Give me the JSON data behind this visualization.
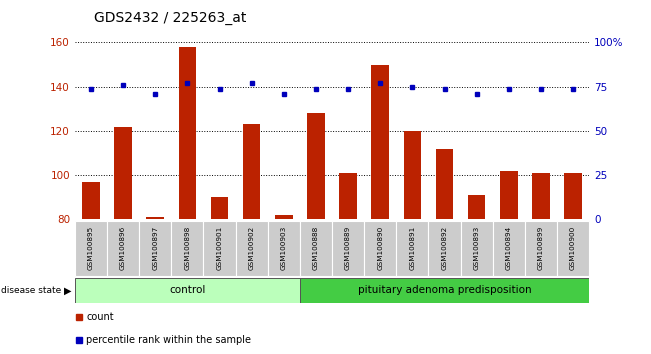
{
  "title": "GDS2432 / 225263_at",
  "samples": [
    "GSM100895",
    "GSM100896",
    "GSM100897",
    "GSM100898",
    "GSM100901",
    "GSM100902",
    "GSM100903",
    "GSM100888",
    "GSM100889",
    "GSM100890",
    "GSM100891",
    "GSM100892",
    "GSM100893",
    "GSM100894",
    "GSM100899",
    "GSM100900"
  ],
  "count_data": [
    97,
    122,
    81,
    158,
    90,
    123,
    82,
    128,
    101,
    150,
    120,
    112,
    91,
    102,
    101,
    101
  ],
  "pct_data": [
    74,
    76,
    71,
    77,
    74,
    77,
    71,
    74,
    74,
    77,
    75,
    74,
    71,
    74,
    74,
    74
  ],
  "ylim_left": [
    80,
    160
  ],
  "ylim_right": [
    0,
    100
  ],
  "yticks_left": [
    80,
    100,
    120,
    140,
    160
  ],
  "yticks_right": [
    0,
    25,
    50,
    75,
    100
  ],
  "ytick_labels_right": [
    "0",
    "25",
    "50",
    "75",
    "100%"
  ],
  "control_count": 7,
  "disease_label": "control",
  "disease2_label": "pituitary adenoma predisposition",
  "bar_color": "#bb2200",
  "dot_color": "#0000bb",
  "control_bg": "#ccffcc",
  "disease_bg": "#44cc44",
  "tick_bg": "#cccccc",
  "legend_count_label": "count",
  "legend_pct_label": "percentile rank within the sample",
  "figsize": [
    6.51,
    3.54
  ],
  "dpi": 100
}
